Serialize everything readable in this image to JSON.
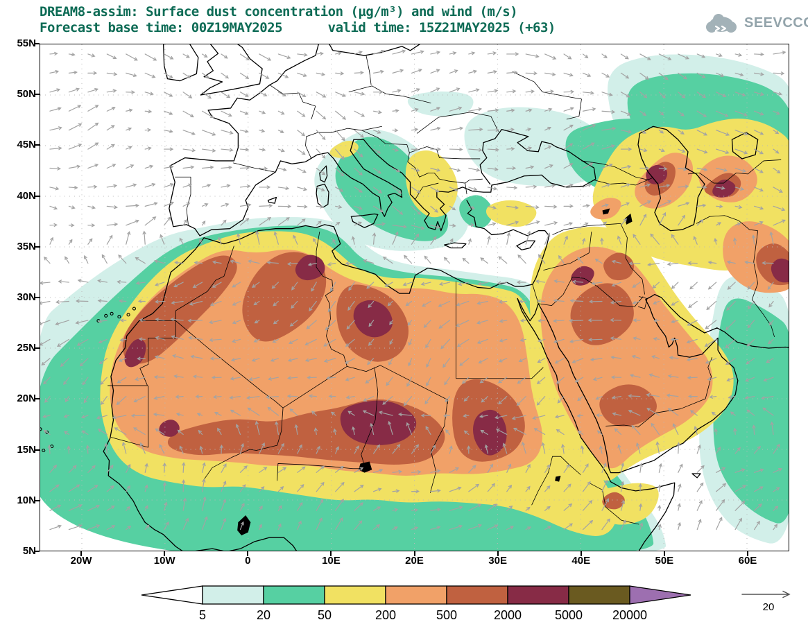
{
  "header": {
    "title_line1": "DREAM8-assim: Surface dust concentration (µg/m³) and wind (m/s)",
    "title_line2": "Forecast base time: 00Z19MAY2025      valid time: 15Z21MAY2025 (+63)",
    "logo": {
      "text": "SEEVCCC"
    }
  },
  "map": {
    "lat_labels": [
      "55N",
      "50N",
      "45N",
      "40N",
      "35N",
      "30N",
      "25N",
      "20N",
      "15N",
      "10N",
      "5N"
    ],
    "lon_labels": [
      "20W",
      "10W",
      "0",
      "10E",
      "20E",
      "30E",
      "40E",
      "50E",
      "60E"
    ]
  },
  "legend": {
    "tick_labels": [
      "5",
      "20",
      "50",
      "200",
      "500",
      "2000",
      "5000",
      "20000"
    ],
    "band_colors": [
      "#ffffff",
      "#d2efe9",
      "#56d0a2",
      "#f1e162",
      "#f1a168",
      "#c06140",
      "#872b46",
      "#6a5a20",
      "#9d6fb0"
    ]
  },
  "wind_scale": {
    "value": "20"
  },
  "chart_data": {
    "type": "heatmap",
    "title": "DREAM8-assim: Surface dust concentration (µg/m³) and wind (m/s)",
    "subtitle": "Forecast base time: 00Z19MAY2025  valid time: 15Z21MAY2025 (+63)",
    "model": "DREAM8-assim",
    "variable": "Surface dust concentration",
    "units": "µg/m³",
    "overlay": "wind vectors",
    "wind_units": "m/s",
    "forecast_base_time": "00Z19MAY2025",
    "valid_time": "15Z21MAY2025",
    "forecast_step": "+63",
    "x": {
      "label": "longitude",
      "ticks": [
        "20W",
        "10W",
        "0",
        "10E",
        "20E",
        "30E",
        "40E",
        "50E",
        "60E"
      ],
      "domain": [
        "25W",
        "65E"
      ]
    },
    "y": {
      "label": "latitude",
      "ticks": [
        "5N",
        "10N",
        "15N",
        "20N",
        "25N",
        "30N",
        "35N",
        "40N",
        "45N",
        "50N",
        "55N"
      ],
      "domain": [
        "5N",
        "55N"
      ]
    },
    "contour_levels": [
      5,
      20,
      50,
      200,
      500,
      2000,
      5000,
      20000
    ],
    "level_colors": [
      "#ffffff",
      "#d2efe9",
      "#56d0a2",
      "#f1e162",
      "#f1a168",
      "#c06140",
      "#872b46",
      "#6a5a20",
      "#9d6fb0"
    ],
    "wind_reference_ms": 20,
    "grid": "dotted graticule every 5° latitude / 10° longitude",
    "legend_position": "bottom",
    "notable_features": [
      "Dust maximum >2000 µg/m³ over Chad/Niger (~10-20E, 15-20N)",
      "Secondary >2000 µg/m³ cores over central Libya, NE Algeria/Tunisia, Sudan (~28-31E, 14-19N), coastal Western Sahara and Mauritania",
      "Broad 500-2000 µg/m³ field across the central Sahara, Iraq and parts of the Arabian Peninsula",
      "200-500 µg/m³ covering most of North Africa (12N-33N) and the Middle East",
      "50-200 µg/m³ fringe reaching the North African coast, Sahel, Po valley, Balkans, Turkey, Caspian region and Central Asia",
      "5-50 µg/m³ over the eastern Atlantic, central Mediterranean, Adriatic/Balkans, Black Sea-Caspian area, Horn of Africa and Arabian Sea",
      ">2000 µg/m³ patches near the Caspian Sea and Turkmenistan"
    ]
  }
}
